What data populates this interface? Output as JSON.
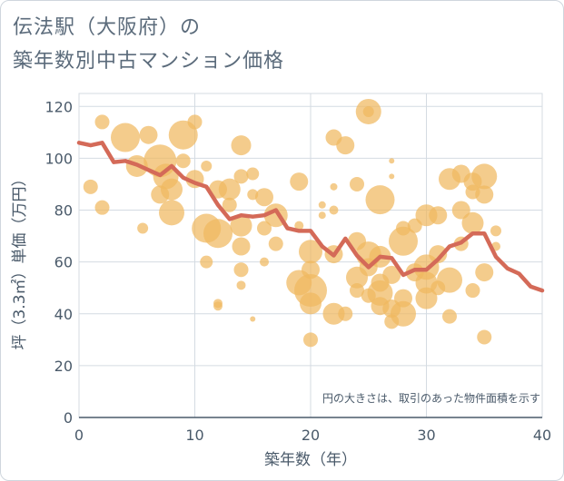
{
  "title": {
    "line1": "伝法駅（大阪府）の",
    "line2": "築年数別中古マンション価格"
  },
  "chart_data": {
    "type": "scatter",
    "xlabel": "築年数（年）",
    "ylabel": "坪（3.3㎡）単価（万円）",
    "xlim": [
      0,
      40
    ],
    "ylim": [
      0,
      125
    ],
    "xticks": [
      "0",
      "10",
      "20",
      "30",
      "40"
    ],
    "yticks": [
      "0",
      "20",
      "40",
      "60",
      "80",
      "100",
      "120"
    ],
    "grid": true,
    "note": "円の大きさは、取引のあった物件面積を示す",
    "colors": {
      "bubble": "#f0b860",
      "line": "#d46a58",
      "grid": "#d4dbe2",
      "axis": "#4a5a6a"
    },
    "bubbles": [
      {
        "x": 1,
        "y": 89,
        "r": 8
      },
      {
        "x": 2,
        "y": 114,
        "r": 8
      },
      {
        "x": 2,
        "y": 81,
        "r": 8
      },
      {
        "x": 4,
        "y": 108,
        "r": 16
      },
      {
        "x": 5,
        "y": 97,
        "r": 12
      },
      {
        "x": 5.5,
        "y": 73,
        "r": 6
      },
      {
        "x": 6,
        "y": 109,
        "r": 10
      },
      {
        "x": 7,
        "y": 99,
        "r": 18
      },
      {
        "x": 7,
        "y": 86,
        "r": 10
      },
      {
        "x": 7.5,
        "y": 93,
        "r": 14
      },
      {
        "x": 8,
        "y": 88,
        "r": 12
      },
      {
        "x": 8,
        "y": 79,
        "r": 14
      },
      {
        "x": 9,
        "y": 109,
        "r": 16
      },
      {
        "x": 9,
        "y": 99,
        "r": 8
      },
      {
        "x": 10,
        "y": 114,
        "r": 8
      },
      {
        "x": 10,
        "y": 92,
        "r": 10
      },
      {
        "x": 11,
        "y": 97,
        "r": 6
      },
      {
        "x": 11,
        "y": 73,
        "r": 16
      },
      {
        "x": 11,
        "y": 60,
        "r": 7
      },
      {
        "x": 12,
        "y": 71,
        "r": 16
      },
      {
        "x": 12,
        "y": 88,
        "r": 10
      },
      {
        "x": 12,
        "y": 44,
        "r": 5
      },
      {
        "x": 12,
        "y": 43,
        "r": 5
      },
      {
        "x": 13,
        "y": 88,
        "r": 12
      },
      {
        "x": 13,
        "y": 82,
        "r": 8
      },
      {
        "x": 14,
        "y": 105,
        "r": 11
      },
      {
        "x": 14,
        "y": 93,
        "r": 8
      },
      {
        "x": 14,
        "y": 74,
        "r": 12
      },
      {
        "x": 14,
        "y": 66,
        "r": 10
      },
      {
        "x": 14,
        "y": 57,
        "r": 8
      },
      {
        "x": 14,
        "y": 51,
        "r": 5
      },
      {
        "x": 15,
        "y": 94,
        "r": 7
      },
      {
        "x": 15,
        "y": 86,
        "r": 6
      },
      {
        "x": 15,
        "y": 38,
        "r": 3
      },
      {
        "x": 16,
        "y": 85,
        "r": 10
      },
      {
        "x": 16,
        "y": 73,
        "r": 8
      },
      {
        "x": 16,
        "y": 60,
        "r": 5
      },
      {
        "x": 17,
        "y": 78,
        "r": 13
      },
      {
        "x": 17,
        "y": 67,
        "r": 8
      },
      {
        "x": 19,
        "y": 91,
        "r": 10
      },
      {
        "x": 19,
        "y": 74,
        "r": 5
      },
      {
        "x": 19,
        "y": 52,
        "r": 14
      },
      {
        "x": 20,
        "y": 64,
        "r": 13
      },
      {
        "x": 20,
        "y": 57,
        "r": 10
      },
      {
        "x": 20,
        "y": 49,
        "r": 18
      },
      {
        "x": 20,
        "y": 44,
        "r": 12
      },
      {
        "x": 20,
        "y": 30,
        "r": 8
      },
      {
        "x": 21,
        "y": 82,
        "r": 4
      },
      {
        "x": 21,
        "y": 78,
        "r": 4
      },
      {
        "x": 22,
        "y": 108,
        "r": 9
      },
      {
        "x": 22,
        "y": 89,
        "r": 4
      },
      {
        "x": 22,
        "y": 80,
        "r": 5
      },
      {
        "x": 22,
        "y": 63,
        "r": 10
      },
      {
        "x": 22,
        "y": 40,
        "r": 12
      },
      {
        "x": 23,
        "y": 105,
        "r": 10
      },
      {
        "x": 23,
        "y": 40,
        "r": 8
      },
      {
        "x": 24,
        "y": 90,
        "r": 8
      },
      {
        "x": 24,
        "y": 68,
        "r": 10
      },
      {
        "x": 24,
        "y": 54,
        "r": 12
      },
      {
        "x": 24,
        "y": 49,
        "r": 8
      },
      {
        "x": 25,
        "y": 118,
        "r": 14
      },
      {
        "x": 25,
        "y": 118,
        "r": 6
      },
      {
        "x": 25,
        "y": 63,
        "r": 14
      },
      {
        "x": 25,
        "y": 58,
        "r": 10
      },
      {
        "x": 25,
        "y": 47,
        "r": 8
      },
      {
        "x": 26,
        "y": 84,
        "r": 16
      },
      {
        "x": 26,
        "y": 62,
        "r": 12
      },
      {
        "x": 26,
        "y": 52,
        "r": 10
      },
      {
        "x": 26,
        "y": 48,
        "r": 14
      },
      {
        "x": 26,
        "y": 43,
        "r": 10
      },
      {
        "x": 27,
        "y": 99,
        "r": 3
      },
      {
        "x": 27,
        "y": 93,
        "r": 3
      },
      {
        "x": 27,
        "y": 55,
        "r": 10
      },
      {
        "x": 27,
        "y": 42,
        "r": 10
      },
      {
        "x": 27,
        "y": 37,
        "r": 8
      },
      {
        "x": 28,
        "y": 73,
        "r": 8
      },
      {
        "x": 28,
        "y": 68,
        "r": 16
      },
      {
        "x": 28,
        "y": 46,
        "r": 10
      },
      {
        "x": 28,
        "y": 40,
        "r": 14
      },
      {
        "x": 29,
        "y": 74,
        "r": 8
      },
      {
        "x": 29,
        "y": 56,
        "r": 10
      },
      {
        "x": 30,
        "y": 78,
        "r": 12
      },
      {
        "x": 30,
        "y": 58,
        "r": 14
      },
      {
        "x": 30,
        "y": 52,
        "r": 12
      },
      {
        "x": 30,
        "y": 46,
        "r": 12
      },
      {
        "x": 31,
        "y": 78,
        "r": 10
      },
      {
        "x": 31,
        "y": 63,
        "r": 10
      },
      {
        "x": 31,
        "y": 50,
        "r": 8
      },
      {
        "x": 32,
        "y": 92,
        "r": 12
      },
      {
        "x": 32,
        "y": 53,
        "r": 14
      },
      {
        "x": 32,
        "y": 39,
        "r": 8
      },
      {
        "x": 33,
        "y": 94,
        "r": 10
      },
      {
        "x": 33,
        "y": 80,
        "r": 10
      },
      {
        "x": 33,
        "y": 67,
        "r": 8
      },
      {
        "x": 34,
        "y": 91,
        "r": 10
      },
      {
        "x": 34,
        "y": 87,
        "r": 8
      },
      {
        "x": 34,
        "y": 75,
        "r": 12
      },
      {
        "x": 34,
        "y": 49,
        "r": 8
      },
      {
        "x": 35,
        "y": 93,
        "r": 14
      },
      {
        "x": 35,
        "y": 86,
        "r": 10
      },
      {
        "x": 35,
        "y": 56,
        "r": 10
      },
      {
        "x": 35,
        "y": 31,
        "r": 8
      },
      {
        "x": 36,
        "y": 72,
        "r": 6
      },
      {
        "x": 36,
        "y": 66,
        "r": 5
      }
    ],
    "series": [
      {
        "x": [
          0,
          1,
          2,
          3,
          4,
          5,
          6,
          7,
          8,
          9,
          10,
          11,
          12,
          13,
          14,
          15,
          16,
          17,
          18,
          19,
          20,
          21,
          22,
          23,
          24,
          25,
          26,
          27,
          28,
          29,
          30,
          31,
          32,
          33,
          34,
          35,
          36,
          37,
          38,
          39,
          40
        ],
        "values": [
          106,
          105,
          106,
          98.5,
          99,
          97.5,
          95.5,
          93.5,
          97,
          92.5,
          90.5,
          89,
          82,
          76.5,
          78,
          77.5,
          78,
          80,
          73,
          72,
          72,
          66,
          62.5,
          69,
          62.5,
          58,
          62,
          61.5,
          55,
          57,
          57,
          61,
          66,
          67.5,
          71,
          71,
          62,
          57.5,
          55.5,
          50.5,
          49
        ]
      }
    ]
  }
}
